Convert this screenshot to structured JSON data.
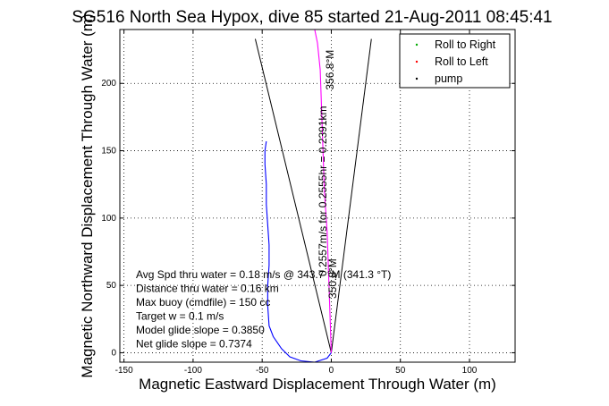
{
  "chart_data": {
    "type": "line",
    "title": "SG516 North Sea Hypox, dive 85 started 21-Aug-2011 08:45:41",
    "xlabel": "Magnetic Eastward Displacement Through Water (m)",
    "ylabel": "Magnetic Northward Displacement Through Water (m)",
    "xlim": [
      -153,
      133
    ],
    "ylim": [
      -7,
      240
    ],
    "xticks": [
      -150,
      -100,
      -50,
      0,
      50,
      100
    ],
    "yticks": [
      0,
      50,
      100,
      150,
      200
    ],
    "grid": true,
    "legend_position": "top-right",
    "legend": [
      {
        "name": "Roll to Right",
        "marker": ".",
        "color": "#00aa00"
      },
      {
        "name": "Roll to Left",
        "marker": ".",
        "color": "#ff0000"
      },
      {
        "name": "pump",
        "marker": ".",
        "color": "#000000"
      }
    ],
    "series": [
      {
        "name": "track-blue",
        "color": "#0000ff",
        "x": [
          0,
          -3,
          -12,
          -22,
          -30,
          -36,
          -42,
          -45,
          -46,
          -46,
          -45,
          -45,
          -46,
          -47,
          -47,
          -48,
          -48,
          -47
        ],
        "y": [
          0,
          -4,
          -7,
          -6,
          -3,
          3,
          12,
          20,
          35,
          50,
          65,
          80,
          95,
          110,
          125,
          140,
          150,
          157
        ]
      },
      {
        "name": "track-magenta",
        "color": "#ff00ff",
        "x": [
          0,
          -1,
          -2,
          -3,
          -5,
          -6,
          -7,
          -8,
          -10,
          -12
        ],
        "y": [
          0,
          30,
          60,
          90,
          120,
          150,
          180,
          210,
          230,
          240
        ]
      }
    ],
    "lines": [
      {
        "name": "envelope-left",
        "color": "#000000",
        "x": [
          0,
          -55
        ],
        "y": [
          0,
          233
        ]
      },
      {
        "name": "envelope-right",
        "color": "#000000",
        "x": [
          0,
          29
        ],
        "y": [
          0,
          233
        ]
      }
    ],
    "annotations": [
      {
        "text": "356.8°M",
        "rotation": -90,
        "at": [
          -1,
          210
        ]
      },
      {
        "text": "0.2557m/s for 0.2555hr = 0.2391km",
        "rotation": -90,
        "at": [
          -6,
          120
        ]
      },
      {
        "text": "350.8°M",
        "rotation": -90,
        "at": [
          1,
          55
        ]
      }
    ],
    "stats": [
      "Avg Spd thru water = 0.18 m/s @ 343.7   °M (341.3 °T)",
      "Distance thru water = 0.16 km",
      "Max buoy (cmdfile) = 150 cc",
      "Target w = 0.1 m/s",
      "Model glide slope = 0.3850",
      "Net glide slope = 0.7374"
    ]
  }
}
